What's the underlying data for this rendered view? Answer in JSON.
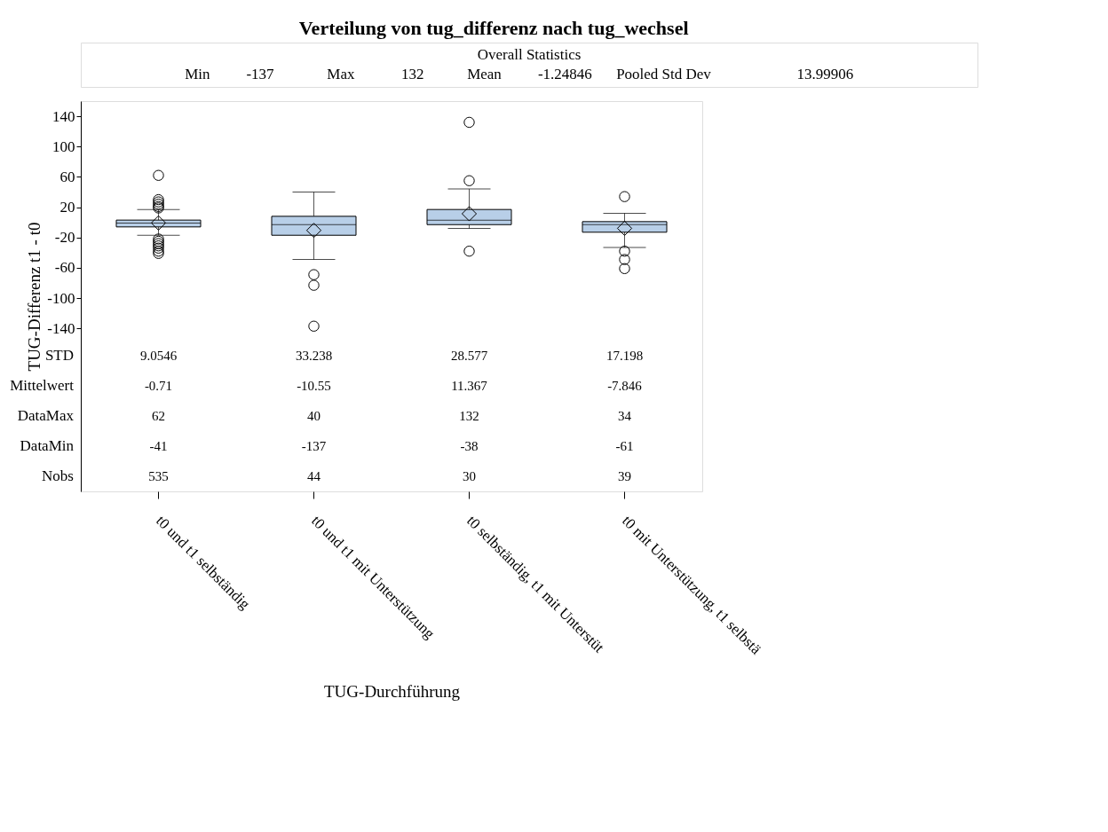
{
  "chart_data": {
    "type": "box",
    "title": "Verteilung von tug_differenz nach tug_wechsel",
    "xlabel": "TUG-Durchführung",
    "ylabel": "TUG-Differenz t1 - t0",
    "categories": [
      "t0 und t1 selbständig",
      "t0 und t1 mit Unterstützung",
      "t0 selbständig, t1 mit Unterstüt",
      "t0 mit Unterstützung, t1 selbstä"
    ],
    "series": [
      {
        "color": "#b8cfe8",
        "boxes": [
          {
            "low": -17,
            "q1": -6,
            "median": -1,
            "q3": 3,
            "high": 17,
            "mean": -0.71,
            "outliers": [
              62,
              30,
              27,
              24,
              21,
              19,
              -22,
              -25,
              -28,
              -31,
              -34,
              -38,
              -41
            ]
          },
          {
            "low": -49,
            "q1": -17,
            "median": -3,
            "q3": 8,
            "high": 40,
            "mean": -10.55,
            "outliers": [
              -69,
              -83,
              -137
            ]
          },
          {
            "low": -8,
            "q1": -3,
            "median": 3,
            "q3": 17,
            "high": 44,
            "mean": 11.367,
            "outliers": [
              132,
              55,
              -38
            ]
          },
          {
            "low": -33,
            "q1": -13,
            "median": -3,
            "q3": 1,
            "high": 12,
            "mean": -7.846,
            "outliers": [
              34,
              -38,
              -49,
              -61
            ]
          }
        ]
      }
    ],
    "ylim": [
      -355,
      160
    ],
    "yticks": [
      140,
      100,
      60,
      20,
      -20,
      -60,
      -100,
      -140
    ],
    "marker": "diamond",
    "annotations": [
      "Overall Statistics",
      "Min",
      "-137",
      "Max",
      "132",
      "Mean",
      "-1.24846",
      "Pooled Std Dev",
      "13.99906",
      "STD",
      "9.0546",
      "33.238",
      "28.577",
      "17.198",
      "Mittelwert",
      "-0.71",
      "-10.55",
      "11.367",
      "-7.846",
      "DataMax",
      "62",
      "40",
      "132",
      "34",
      "DataMin",
      "-41",
      "-137",
      "-38",
      "-61",
      "Nobs",
      "535",
      "44",
      "30",
      "39"
    ]
  }
}
